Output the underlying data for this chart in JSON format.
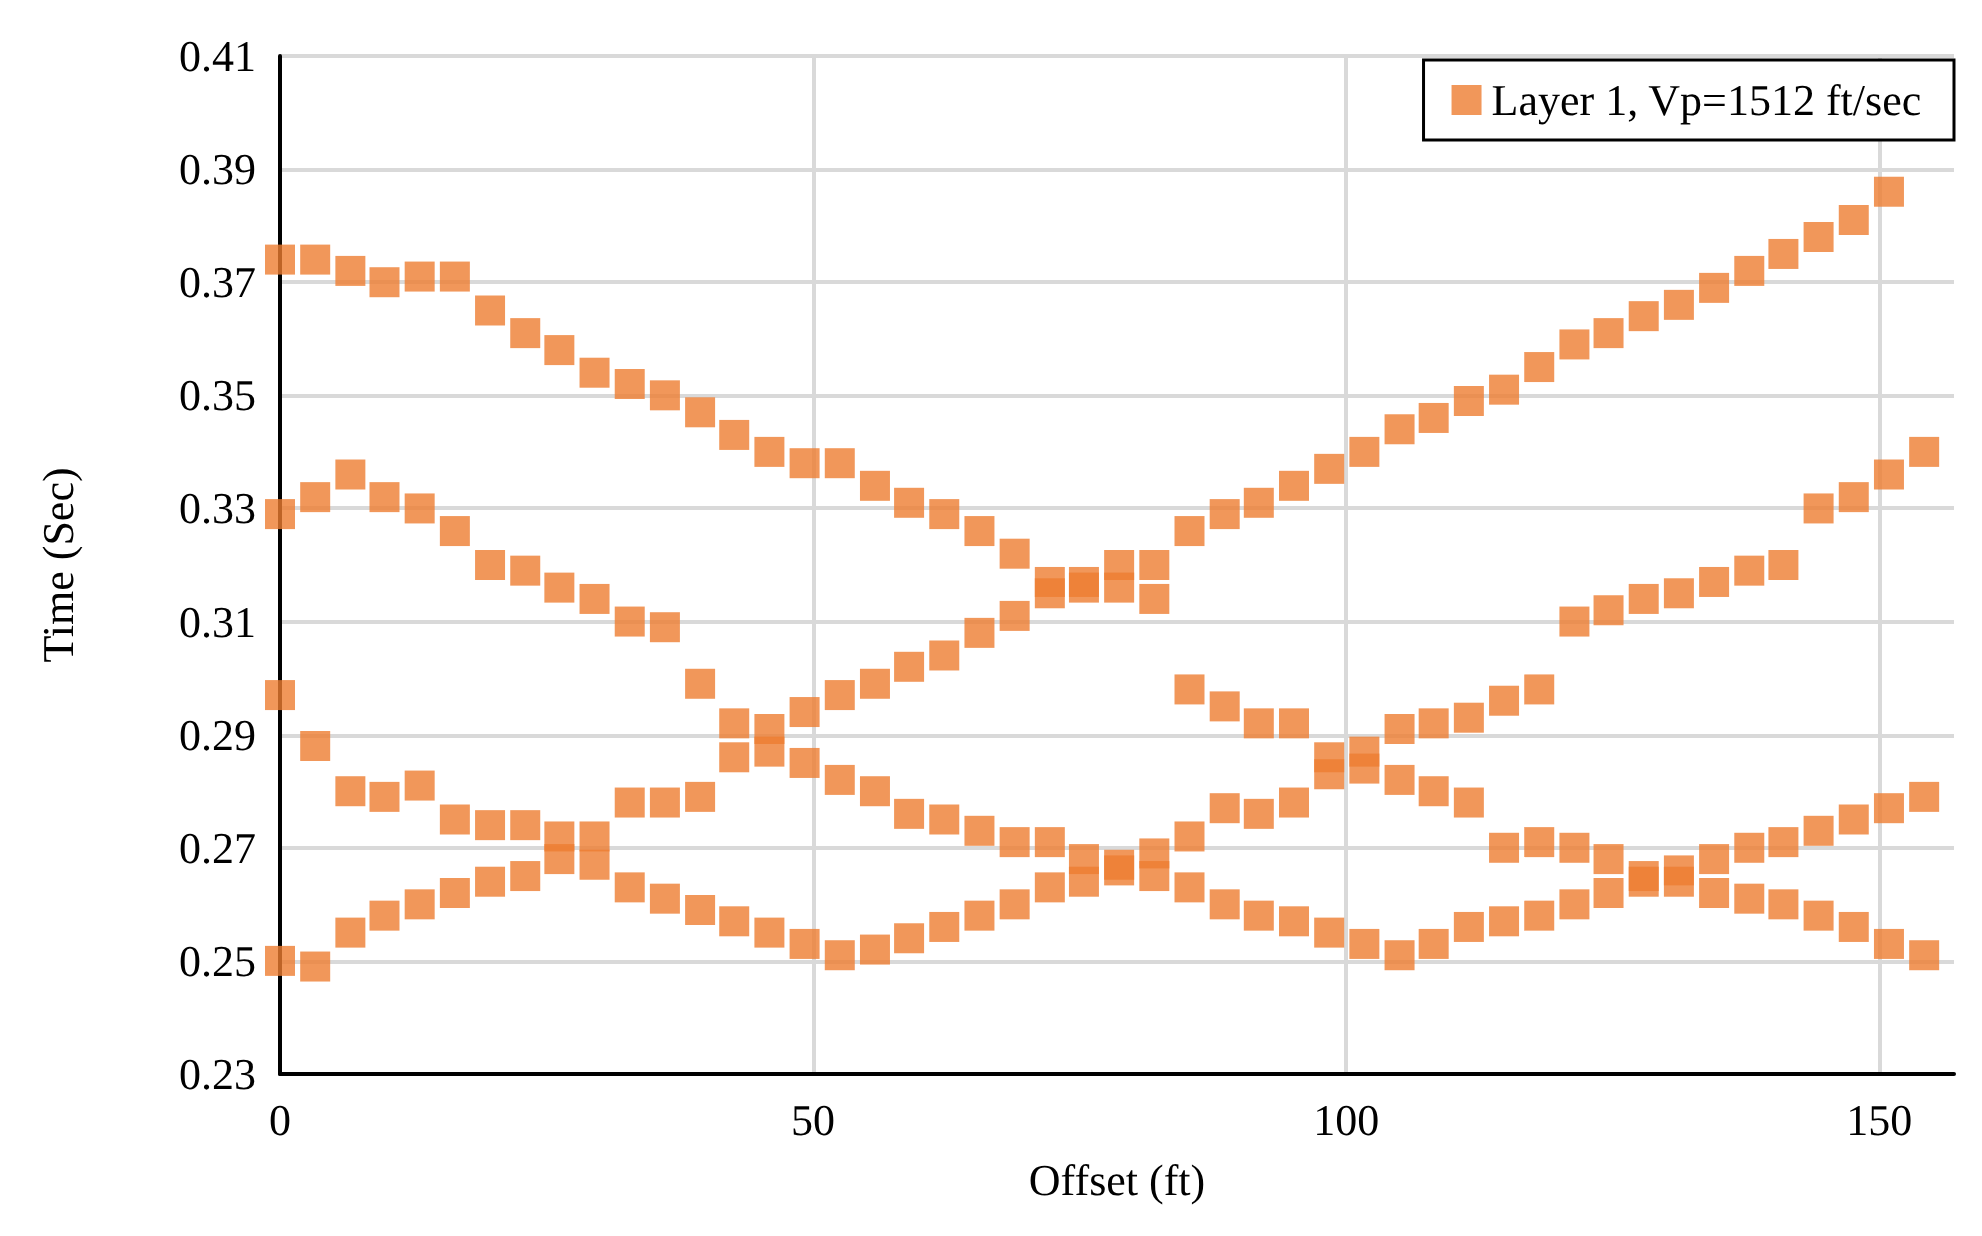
{
  "chart_data": {
    "type": "scatter",
    "xlabel": "Offset (ft)",
    "ylabel": "Time (Sec)",
    "xlim": [
      0,
      157
    ],
    "xticks": [
      0,
      50,
      100,
      150
    ],
    "ylim": [
      0.23,
      0.41
    ],
    "yticks": [
      0.23,
      0.25,
      0.27,
      0.29,
      0.31,
      0.33,
      0.35,
      0.37,
      0.39,
      0.41
    ],
    "grid": true,
    "legend": "top right",
    "marker": "square",
    "series": [
      {
        "name": "Layer 1, Vp=1512 ft/sec",
        "color": "#ed7d31",
        "x": [
          0,
          0,
          0,
          0,
          3.3,
          3.3,
          3.3,
          3.3,
          6.6,
          6.6,
          6.6,
          6.6,
          9.8,
          9.8,
          9.8,
          9.8,
          13.1,
          13.1,
          13.1,
          13.1,
          16.4,
          16.4,
          16.4,
          16.4,
          19.7,
          19.7,
          19.7,
          19.7,
          23.0,
          23.0,
          23.0,
          23.0,
          26.2,
          26.2,
          26.2,
          26.2,
          29.5,
          29.5,
          29.5,
          29.5,
          32.8,
          32.8,
          32.8,
          32.8,
          36.1,
          36.1,
          36.1,
          36.1,
          39.4,
          39.4,
          39.4,
          39.4,
          42.6,
          42.6,
          42.6,
          42.6,
          45.9,
          45.9,
          45.9,
          45.9,
          49.2,
          49.2,
          49.2,
          49.2,
          52.5,
          52.5,
          52.5,
          52.5,
          55.8,
          55.8,
          55.8,
          55.8,
          59.0,
          59.0,
          59.0,
          59.0,
          62.3,
          62.3,
          62.3,
          62.3,
          65.6,
          65.6,
          65.6,
          65.6,
          68.9,
          68.9,
          68.9,
          68.9,
          72.2,
          72.2,
          72.2,
          72.2,
          75.4,
          75.4,
          75.4,
          75.4,
          78.7,
          78.7,
          78.7,
          78.7,
          82.0,
          82.0,
          82.0,
          82.0,
          85.3,
          85.3,
          85.3,
          85.3,
          88.6,
          88.6,
          88.6,
          88.6,
          91.8,
          91.8,
          91.8,
          91.8,
          95.1,
          95.1,
          95.1,
          95.1,
          98.4,
          98.4,
          98.4,
          98.4,
          101.7,
          101.7,
          101.7,
          101.7,
          105.0,
          105.0,
          105.0,
          105.0,
          108.2,
          108.2,
          108.2,
          108.2,
          111.5,
          111.5,
          111.5,
          111.5,
          114.8,
          114.8,
          114.8,
          114.8,
          118.1,
          118.1,
          118.1,
          118.1,
          121.4,
          121.4,
          121.4,
          121.4,
          124.6,
          124.6,
          124.6,
          124.6,
          127.9,
          127.9,
          127.9,
          127.9,
          131.2,
          131.2,
          131.2,
          131.2,
          134.5,
          134.5,
          134.5,
          134.5,
          137.8,
          137.8,
          137.8,
          137.8,
          141.0,
          141.0,
          141.0,
          141.0,
          144.3,
          144.3,
          144.3,
          144.3,
          147.6,
          147.6,
          147.6,
          147.6,
          150.9,
          150.9,
          150.9,
          150.9,
          154.2,
          154.2,
          154.2
        ],
        "values": [
          0.374,
          0.329,
          0.297,
          0.25,
          0.374,
          0.332,
          0.288,
          0.249,
          0.372,
          0.336,
          0.28,
          0.255,
          0.37,
          0.332,
          0.279,
          0.258,
          0.371,
          0.33,
          0.281,
          0.26,
          0.371,
          0.326,
          0.275,
          0.262,
          0.365,
          0.32,
          0.274,
          0.264,
          0.361,
          0.319,
          0.274,
          0.265,
          0.358,
          0.316,
          0.272,
          0.268,
          0.354,
          0.314,
          0.272,
          0.267,
          0.352,
          0.31,
          0.278,
          0.263,
          0.35,
          0.309,
          0.278,
          0.261,
          0.347,
          0.299,
          0.279,
          0.259,
          0.343,
          0.292,
          0.286,
          0.257,
          0.34,
          0.291,
          0.287,
          0.255,
          0.338,
          0.294,
          0.285,
          0.253,
          0.338,
          0.297,
          0.282,
          0.251,
          0.334,
          0.299,
          0.28,
          0.252,
          0.331,
          0.302,
          0.276,
          0.254,
          0.329,
          0.304,
          0.275,
          0.256,
          0.326,
          0.308,
          0.273,
          0.258,
          0.322,
          0.311,
          0.271,
          0.26,
          0.317,
          0.315,
          0.271,
          0.263,
          0.317,
          0.316,
          0.268,
          0.264,
          0.32,
          0.316,
          0.267,
          0.266,
          0.32,
          0.314,
          0.269,
          0.265,
          0.326,
          0.298,
          0.272,
          0.263,
          0.329,
          0.295,
          0.277,
          0.26,
          0.331,
          0.292,
          0.276,
          0.258,
          0.334,
          0.292,
          0.278,
          0.257,
          0.337,
          0.286,
          0.283,
          0.255,
          0.34,
          0.287,
          0.284,
          0.253,
          0.344,
          0.291,
          0.282,
          0.251,
          0.346,
          0.292,
          0.28,
          0.253,
          0.349,
          0.293,
          0.278,
          0.256,
          0.351,
          0.296,
          0.27,
          0.257,
          0.355,
          0.298,
          0.271,
          0.258,
          0.359,
          0.31,
          0.27,
          0.26,
          0.361,
          0.312,
          0.268,
          0.262,
          0.364,
          0.314,
          0.265,
          0.264,
          0.366,
          0.315,
          0.266,
          0.264,
          0.369,
          0.317,
          0.268,
          0.262,
          0.372,
          0.319,
          0.27,
          0.261,
          0.375,
          0.32,
          0.271,
          0.26,
          0.378,
          0.33,
          0.273,
          0.258,
          0.381,
          0.332,
          0.275,
          0.256,
          0.386,
          0.336,
          0.277,
          0.253,
          0.34,
          0.279,
          0.251
        ]
      }
    ]
  }
}
